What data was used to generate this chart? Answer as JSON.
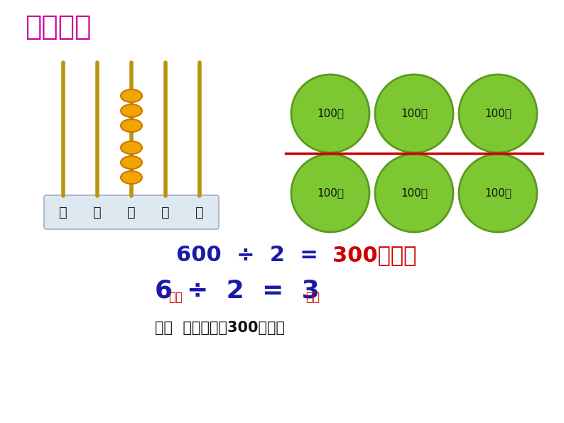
{
  "title": "主动议学",
  "title_color": "#cc0099",
  "bg_color": "#ffffff",
  "abacus_columns": [
    "万",
    "千",
    "百",
    "十",
    "个"
  ],
  "abacus_beads_col": 2,
  "abacus_upper_beads": 3,
  "abacus_lower_beads": 3,
  "abacus_rod_color": "#b8960c",
  "abacus_bead_color": "#f0a500",
  "abacus_bead_outline": "#c87800",
  "circle_color": "#7dc832",
  "circle_outline": "#5a9a20",
  "circle_label": "100棵",
  "circle_label_color": "#111111",
  "dividing_line_color": "#cc0000",
  "eq1_blue_color": "#1a1aaa",
  "eq1_red_color": "#cc0000",
  "eq2_color": "#1a1aaa",
  "eq2_subscript_color": "#cc0000",
  "answer_color": "#111111",
  "answer_text": "答：  每所学校分3 0 0棵树。"
}
